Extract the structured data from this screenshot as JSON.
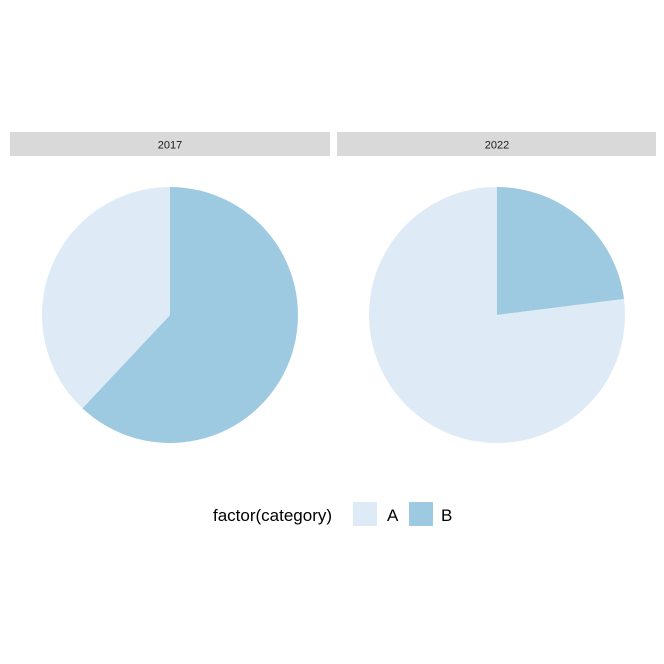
{
  "chart_data": {
    "type": "pie",
    "facet_variable": "",
    "facets": [
      {
        "label": "2017",
        "values": [
          {
            "category": "A",
            "value": 38
          },
          {
            "category": "B",
            "value": 62
          }
        ]
      },
      {
        "label": "2022",
        "values": [
          {
            "category": "A",
            "value": 77
          },
          {
            "category": "B",
            "value": 23
          }
        ]
      }
    ],
    "legend": {
      "title": "factor(category)",
      "position": "bottom",
      "entries": [
        {
          "label": "A",
          "color": "#deebf7"
        },
        {
          "label": "B",
          "color": "#9ecae1"
        }
      ]
    },
    "strip_color": "#d9d9d9",
    "start_angle": "12 o'clock",
    "direction": "clockwise"
  }
}
